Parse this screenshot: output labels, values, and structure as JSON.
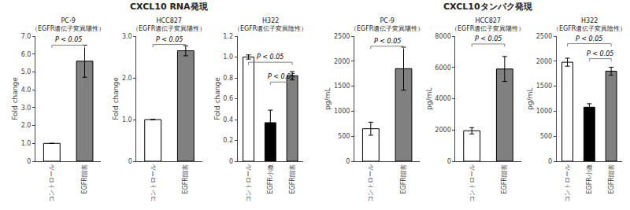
{
  "chart_data": [
    {
      "type": "bar",
      "title": "CXCL10 RNA発現",
      "panels": [
        {
          "title": "PC-9",
          "subtitle": "（EGFR遺伝子変異陽性）",
          "ylabel": "Fold change",
          "categories": [
            "コントロール",
            "EGFR阻害"
          ],
          "values": [
            1.0,
            5.6
          ],
          "errors": [
            0.0,
            0.9
          ],
          "colors": [
            "white",
            "#808080"
          ],
          "ylim": [
            0,
            7.0
          ],
          "yticks": [
            0,
            {
              "value": 1.0,
              "label": "1.0"
            },
            {
              "value": 2.0,
              "label": "2.0"
            },
            {
              "value": 3.0,
              "label": "3.0"
            },
            {
              "value": 4.0,
              "label": "4.0"
            },
            {
              "value": 5.0,
              "label": "5.0"
            },
            {
              "value": 6.0,
              "label": "6.0"
            },
            {
              "value": 7.0,
              "label": "7.0"
            }
          ],
          "grid": false,
          "annotations": [
            {
              "from": "コントロール",
              "to": "EGFR阻害",
              "y": 6.5,
              "text": "P < 0.05"
            }
          ]
        },
        {
          "title": "HCC827",
          "subtitle": "（EGFR遺伝子変異陽性）",
          "ylabel": "Fold change",
          "categories": [
            "コントロール",
            "EGFR阻害"
          ],
          "values": [
            1.0,
            2.65
          ],
          "errors": [
            0.0,
            0.12
          ],
          "colors": [
            "white",
            "#808080"
          ],
          "ylim": [
            0,
            3.0
          ],
          "yticks": [
            0,
            {
              "value": 1.0,
              "label": "1.0"
            },
            {
              "value": 2.0,
              "label": "2.0"
            },
            {
              "value": 3.0,
              "label": "3.0"
            }
          ],
          "grid": false,
          "annotations": [
            {
              "from": "コントロール",
              "to": "EGFR阻害",
              "y": 2.8,
              "text": "P < 0.05"
            }
          ]
        },
        {
          "title": "H322",
          "subtitle": "（EGFR遺伝子変異陰性）",
          "ylabel": "Fold change",
          "categories": [
            "コントロール",
            "EGFR小激",
            "EGFR阻害"
          ],
          "values": [
            1.0,
            0.37,
            0.82
          ],
          "errors": [
            0.02,
            0.12,
            0.04
          ],
          "colors": [
            "white",
            "black",
            "#808080"
          ],
          "ylim": [
            0,
            1.2
          ],
          "yticks": [
            0,
            0.2,
            0.4,
            0.6,
            0.8,
            {
              "value": 1.0,
              "label": "1.0"
            },
            1.2
          ],
          "grid": false,
          "annotations": [
            {
              "from": "コントロール",
              "to": "EGFR阻害",
              "y": 0.95,
              "text": "P < 0.05"
            },
            {
              "from": "EGFR小激",
              "to": "EGFR阻害",
              "y": 0.76,
              "text": "P < 0.05"
            }
          ]
        }
      ]
    },
    {
      "type": "bar",
      "title": "CXCL10タンパク発現",
      "panels": [
        {
          "title": "PC-9",
          "subtitle": "（EGFR遺伝子変異陽性）",
          "ylabel": "pg/mL",
          "categories": [
            "コントロール",
            "EGFR阻害"
          ],
          "values": [
            650,
            1850
          ],
          "errors": [
            130,
            430
          ],
          "colors": [
            "white",
            "#808080"
          ],
          "ylim": [
            0,
            2500
          ],
          "yticks": [
            0,
            500,
            1000,
            1500,
            2000,
            2500
          ],
          "grid": false,
          "annotations": [
            {
              "from": "コントロール",
              "to": "EGFR阻害",
              "y": 2300,
              "text": "P < 0.05"
            }
          ]
        },
        {
          "title": "HCC827",
          "subtitle": "（EGFR遺伝子変異陽性）",
          "ylabel": "pg/mL",
          "categories": [
            "コントロール",
            "EGFR阻害"
          ],
          "values": [
            1950,
            5900
          ],
          "errors": [
            200,
            800
          ],
          "colors": [
            "white",
            "#808080"
          ],
          "ylim": [
            0,
            8000
          ],
          "yticks": [
            0,
            2000,
            4000,
            6000,
            8000
          ],
          "grid": false,
          "annotations": [
            {
              "from": "コントロール",
              "to": "EGFR阻害",
              "y": 7500,
              "text": "P < 0.05"
            }
          ]
        },
        {
          "title": "H322",
          "subtitle": "（EGFR遺伝子変異陰性）",
          "ylabel": "pg/mL",
          "categories": [
            "コントロール",
            "EGFR小激",
            "EGFR阻害"
          ],
          "values": [
            1980,
            1080,
            1800
          ],
          "errors": [
            80,
            70,
            80
          ],
          "colors": [
            "white",
            "black",
            "#808080"
          ],
          "ylim": [
            0,
            2500
          ],
          "yticks": [
            0,
            500,
            1000,
            1500,
            2000,
            2500
          ],
          "grid": false,
          "annotations": [
            {
              "from": "コントロール",
              "to": "EGFR阻害",
              "y": 2350,
              "text": "P < 0.05"
            },
            {
              "from": "EGFR小激",
              "to": "EGFR阻害",
              "y": 2050,
              "text": "P < 0.05"
            }
          ]
        }
      ]
    }
  ]
}
